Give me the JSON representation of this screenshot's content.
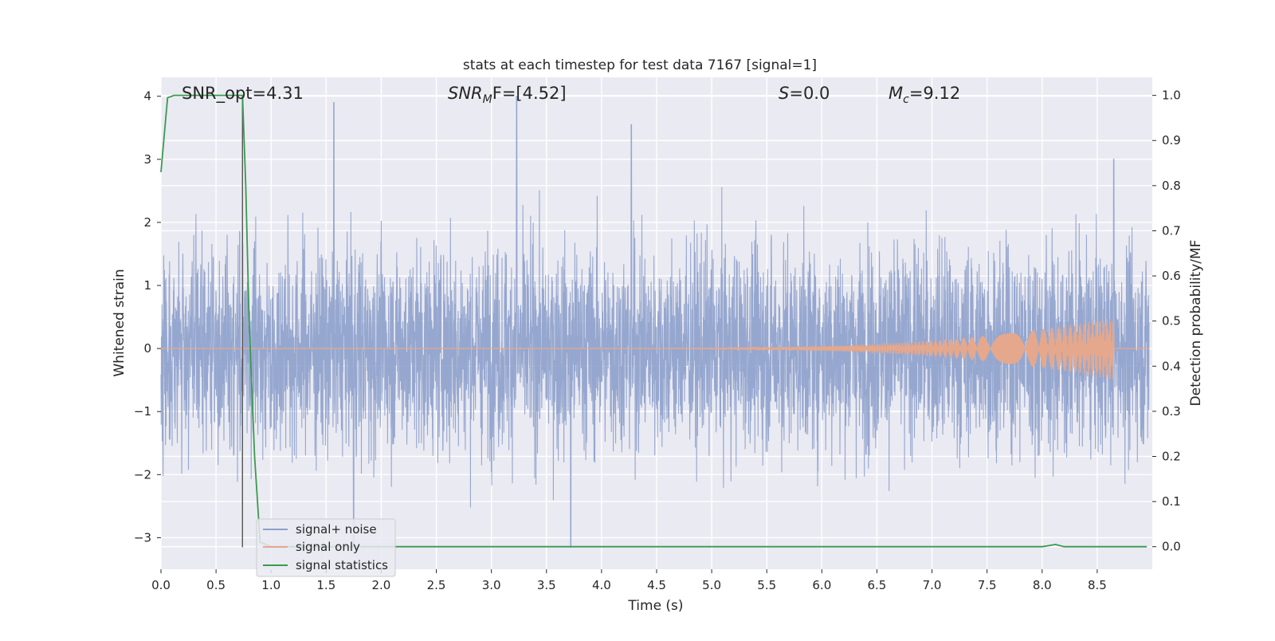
{
  "chart_data": {
    "type": "line",
    "title": "stats at each timestep for test data 7167 [signal=1]",
    "xlabel": "Time (s)",
    "ylabel": "Whitened strain",
    "ylabel_right": "Detection probability/MF",
    "xlim": [
      0.0,
      9.0
    ],
    "ylim": [
      -3.5,
      4.3
    ],
    "ylim_right": [
      -0.05,
      1.04
    ],
    "x_ticks": [
      "0.0",
      "0.5",
      "1.0",
      "1.5",
      "2.0",
      "2.5",
      "3.0",
      "3.5",
      "4.0",
      "4.5",
      "5.0",
      "5.5",
      "6.0",
      "6.5",
      "7.0",
      "7.5",
      "8.0",
      "8.5"
    ],
    "y_ticks": [
      "4",
      "3",
      "2",
      "1",
      "0",
      "−1",
      "−2",
      "−3"
    ],
    "y_ticks_right": [
      "1.0",
      "0.9",
      "0.8",
      "0.7",
      "0.6",
      "0.5",
      "0.4",
      "0.3",
      "0.2",
      "0.1",
      "0.0"
    ],
    "grid": true,
    "legend_position": "lower-left",
    "annotations": {
      "snr_opt": "SNR_opt=4.31",
      "snr_mf_main": "SNR",
      "snr_mf_sub": "M",
      "snr_mf_rest": "F=[4.52]",
      "s_main": "S",
      "s_rest": "=0.0",
      "mc_main": "M",
      "mc_sub": "c",
      "mc_rest": "=9.12"
    },
    "series": [
      {
        "name": "signal+ noise",
        "color": "#8da0cb",
        "axis": "left",
        "description_values": {
          "typical_range": [
            -1.7,
            1.8
          ],
          "peaks": [
            [
              1.57,
              3.9
            ],
            [
              3.23,
              4.0
            ],
            [
              4.27,
              3.55
            ],
            [
              8.65,
              3.0
            ],
            [
              3.72,
              -3.15
            ],
            [
              1.75,
              -3.1
            ]
          ]
        }
      },
      {
        "name": "signal only",
        "color": "#e5a88c",
        "axis": "left",
        "x_start": 4.0,
        "x_peak": 8.65,
        "amplitude_peak": 0.48
      },
      {
        "name": "signal statistics",
        "color": "#3a9a4f",
        "axis": "right",
        "x": [
          0.0,
          0.06,
          0.12,
          0.3,
          0.5,
          0.72,
          0.74,
          0.77,
          0.8,
          0.85,
          0.9,
          1.0,
          2.0,
          4.0,
          6.0,
          7.5,
          8.0,
          8.05,
          8.12,
          8.2,
          8.5,
          8.95
        ],
        "values": [
          0.83,
          0.995,
          1.0,
          1.0,
          1.0,
          1.0,
          1.0,
          0.8,
          0.5,
          0.2,
          0.01,
          0.0,
          0.0,
          0.0,
          0.0,
          0.0,
          0.0,
          0.002,
          0.005,
          0.0,
          0.0,
          0.0
        ]
      }
    ],
    "vertical_marker": {
      "x": 0.74,
      "color": "#555555"
    }
  }
}
